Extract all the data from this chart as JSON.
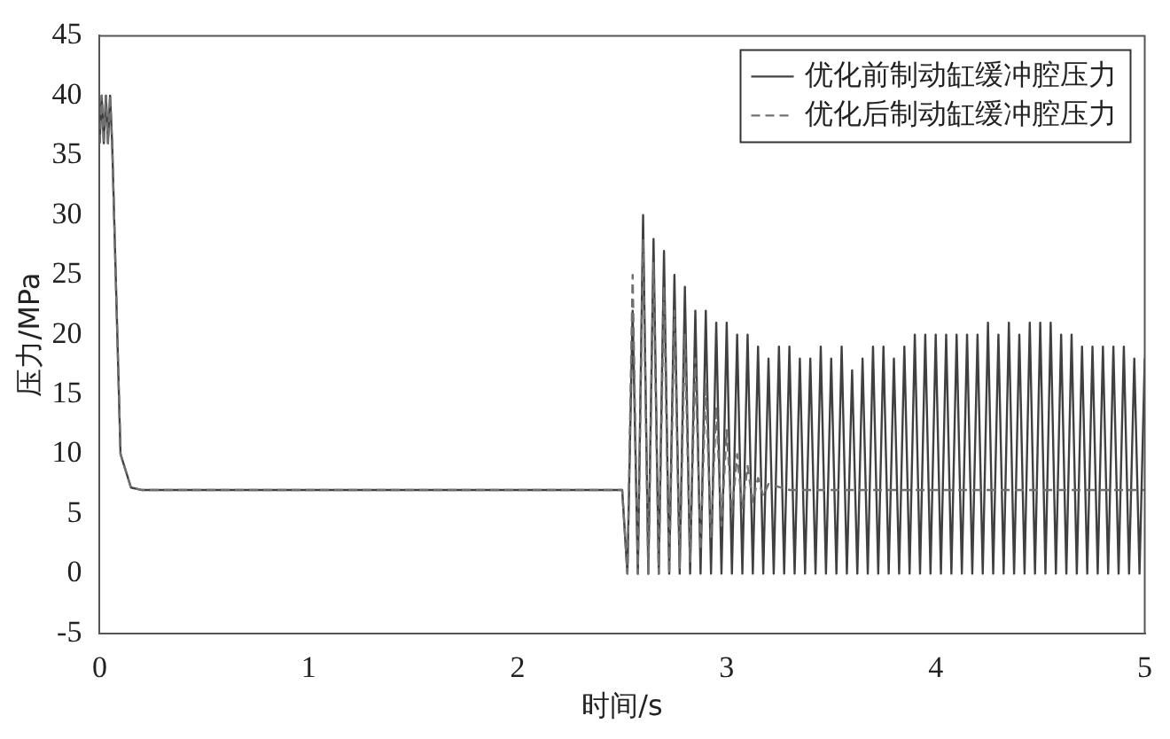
{
  "chart_data": {
    "type": "line",
    "xlabel": "时间/s",
    "ylabel": "压力/MPa",
    "xlim": [
      0,
      5
    ],
    "xticks": [
      0,
      1,
      2,
      3,
      4,
      5
    ],
    "ylim": [
      -5,
      45
    ],
    "yticks": [
      -5,
      0,
      5,
      10,
      15,
      20,
      25,
      30,
      35,
      40,
      45
    ],
    "grid": false,
    "legend": "top right",
    "marker": "none",
    "series": [
      {
        "name": "优化后制动缸缓冲腔压力",
        "color": "#707070",
        "line_style": "dashed",
        "x": [
          0,
          0.01,
          0.02,
          0.03,
          0.04,
          0.05,
          0.06,
          0.1,
          0.15,
          0.2,
          2.5,
          2.525,
          2.55,
          2.575,
          2.6,
          2.625,
          2.65,
          2.675,
          2.7,
          2.725,
          2.75,
          2.775,
          2.8,
          2.825,
          2.85,
          2.875,
          2.9,
          2.925,
          2.95,
          2.975,
          3.0,
          3.025,
          3.05,
          3.075,
          3.1,
          3.125,
          3.15,
          3.175,
          3.2,
          3.3,
          5
        ],
        "values": [
          36,
          40,
          36,
          40,
          36,
          40,
          36,
          10,
          7.2,
          7,
          7,
          0,
          25,
          0,
          28,
          0,
          26,
          0,
          24,
          0,
          22,
          0.5,
          20,
          1,
          18,
          2,
          16,
          3,
          14,
          4,
          12,
          5,
          10,
          5.5,
          9,
          6,
          8,
          6.5,
          7.5,
          7,
          7
        ]
      },
      {
        "name": "优化前制动缸缓冲腔压力",
        "color": "#404040",
        "line_style": "solid",
        "x": [
          0,
          0.01,
          0.02,
          0.03,
          0.04,
          0.05,
          0.06,
          0.1,
          0.15,
          0.2,
          2.5,
          2.525,
          2.55,
          2.575,
          2.6,
          2.625,
          2.65,
          2.675,
          2.7,
          2.725,
          2.75,
          2.775,
          2.8,
          2.825,
          2.85,
          2.875,
          2.9,
          2.925,
          2.95,
          2.975,
          3.0,
          3.025,
          3.05,
          3.075,
          3.1,
          3.125,
          3.15,
          3.175,
          3.2,
          3.225,
          3.25,
          3.275,
          3.3,
          3.325,
          3.35,
          3.375,
          3.4,
          3.425,
          3.45,
          3.475,
          3.5,
          3.525,
          3.55,
          3.575,
          3.6,
          3.625,
          3.65,
          3.675,
          3.7,
          3.725,
          3.75,
          3.775,
          3.8,
          3.825,
          3.85,
          3.875,
          3.9,
          3.925,
          3.95,
          3.975,
          4.0,
          4.025,
          4.05,
          4.075,
          4.1,
          4.125,
          4.15,
          4.175,
          4.2,
          4.225,
          4.25,
          4.275,
          4.3,
          4.325,
          4.35,
          4.375,
          4.4,
          4.425,
          4.45,
          4.475,
          4.5,
          4.525,
          4.55,
          4.575,
          4.6,
          4.625,
          4.65,
          4.675,
          4.7,
          4.725,
          4.75,
          4.775,
          4.8,
          4.825,
          4.85,
          4.875,
          4.9,
          4.925,
          4.95,
          4.975,
          5.0
        ],
        "values": [
          36,
          40,
          36,
          40,
          36,
          40,
          36,
          10,
          7.2,
          7,
          7,
          0,
          22,
          0,
          30,
          0,
          28,
          0,
          27,
          0,
          25,
          0,
          24,
          0,
          22,
          0,
          22,
          0,
          21,
          0,
          21,
          0,
          20,
          0,
          20,
          0,
          19,
          0,
          18,
          0,
          19,
          0,
          19,
          0,
          18,
          0,
          18,
          0,
          19,
          0,
          18,
          0,
          19,
          0,
          17,
          0,
          18,
          0,
          19,
          0,
          19,
          0,
          18,
          0,
          19,
          0,
          20,
          0,
          20,
          0,
          20,
          0,
          20,
          0,
          20,
          0,
          20,
          0,
          20,
          0,
          21,
          0,
          20,
          0,
          21,
          0,
          20,
          0,
          21,
          0,
          21,
          0,
          21,
          0,
          20,
          0,
          20,
          0,
          19,
          0,
          19,
          0,
          19,
          0,
          19,
          0,
          19,
          0,
          18,
          0,
          18
        ]
      }
    ]
  }
}
